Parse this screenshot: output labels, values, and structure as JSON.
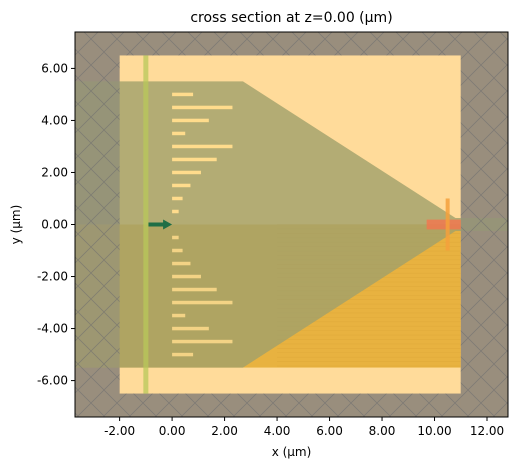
{
  "chart_data": {
    "type": "structure-cross-section",
    "title": "cross section at z=0.00 (μm)",
    "xlabel": "x (μm)",
    "ylabel": "y (μm)",
    "xlim": [
      -3.7,
      12.8
    ],
    "ylim": [
      -7.4,
      7.4
    ],
    "x_ticks": [
      -2.0,
      0.0,
      2.0,
      4.0,
      6.0,
      8.0,
      10.0,
      12.0
    ],
    "x_tick_labels": [
      "-2.00",
      "0.00",
      "2.00",
      "4.00",
      "6.00",
      "8.00",
      "10.00",
      "12.00"
    ],
    "y_ticks": [
      -6.0,
      -4.0,
      -2.0,
      0.0,
      2.0,
      4.0,
      6.0
    ],
    "y_tick_labels": [
      "-6.00",
      "-4.00",
      "-2.00",
      "0.00",
      "2.00",
      "4.00",
      "6.00"
    ],
    "grid": false,
    "colors": {
      "background": "#a89476",
      "simulation_domain": "#ffdb9a",
      "substrate": "#e8b240",
      "waveguide": "#a0a06a",
      "grating_bars": "#ffdc8c",
      "pml_overlay": "#888888",
      "source": "#b8c85a",
      "mode_source_arrow": "#1e6e46",
      "monitor": "#f5a03c"
    },
    "simulation_domain": {
      "x": [
        -2.0,
        11.0
      ],
      "y": [
        -6.5,
        6.5
      ]
    },
    "substrate": {
      "x": [
        -3.7,
        11.0
      ],
      "y": [
        -5.5,
        0.0
      ]
    },
    "waveguide_taper": {
      "polygon": [
        [
          -3.7,
          5.5
        ],
        [
          2.7,
          5.5
        ],
        [
          10.8,
          0.25
        ],
        [
          12.8,
          0.25
        ],
        [
          12.8,
          -0.25
        ],
        [
          10.8,
          -0.25
        ],
        [
          2.7,
          -5.5
        ],
        [
          -3.7,
          -5.5
        ]
      ]
    },
    "grating_bars_upper": [
      {
        "y": 5.0,
        "x0": 0.0,
        "x1": 0.8
      },
      {
        "y": 4.5,
        "x0": 0.0,
        "x1": 2.3
      },
      {
        "y": 4.0,
        "x0": 0.0,
        "x1": 1.4
      },
      {
        "y": 3.5,
        "x0": 0.0,
        "x1": 0.5
      },
      {
        "y": 3.0,
        "x0": 0.0,
        "x1": 2.3
      },
      {
        "y": 2.5,
        "x0": 0.0,
        "x1": 1.7
      },
      {
        "y": 2.0,
        "x0": 0.0,
        "x1": 1.1
      },
      {
        "y": 1.5,
        "x0": 0.0,
        "x1": 0.7
      },
      {
        "y": 1.0,
        "x0": 0.0,
        "x1": 0.4
      },
      {
        "y": 0.5,
        "x0": 0.0,
        "x1": 0.25
      }
    ],
    "grating_bars_lower": [
      {
        "y": -0.5,
        "x0": 0.0,
        "x1": 0.25
      },
      {
        "y": -1.0,
        "x0": 0.0,
        "x1": 0.4
      },
      {
        "y": -1.5,
        "x0": 0.0,
        "x1": 0.7
      },
      {
        "y": -2.0,
        "x0": 0.0,
        "x1": 1.1
      },
      {
        "y": -2.5,
        "x0": 0.0,
        "x1": 1.7
      },
      {
        "y": -3.0,
        "x0": 0.0,
        "x1": 2.3
      },
      {
        "y": -3.5,
        "x0": 0.0,
        "x1": 0.5
      },
      {
        "y": -4.0,
        "x0": 0.0,
        "x1": 1.4
      },
      {
        "y": -4.5,
        "x0": 0.0,
        "x1": 2.3
      },
      {
        "y": -5.0,
        "x0": 0.0,
        "x1": 0.8
      }
    ],
    "source_line": {
      "x": -1.0,
      "y": [
        -6.5,
        6.5
      ]
    },
    "mode_source_arrow": {
      "x0": -0.9,
      "x1": 0.0,
      "y": 0.0
    },
    "monitor": {
      "x": 10.5,
      "y": [
        -1.0,
        1.0
      ]
    },
    "monitor_patch": {
      "x": [
        9.7,
        11.0
      ],
      "y": [
        -0.15,
        0.15
      ]
    }
  }
}
